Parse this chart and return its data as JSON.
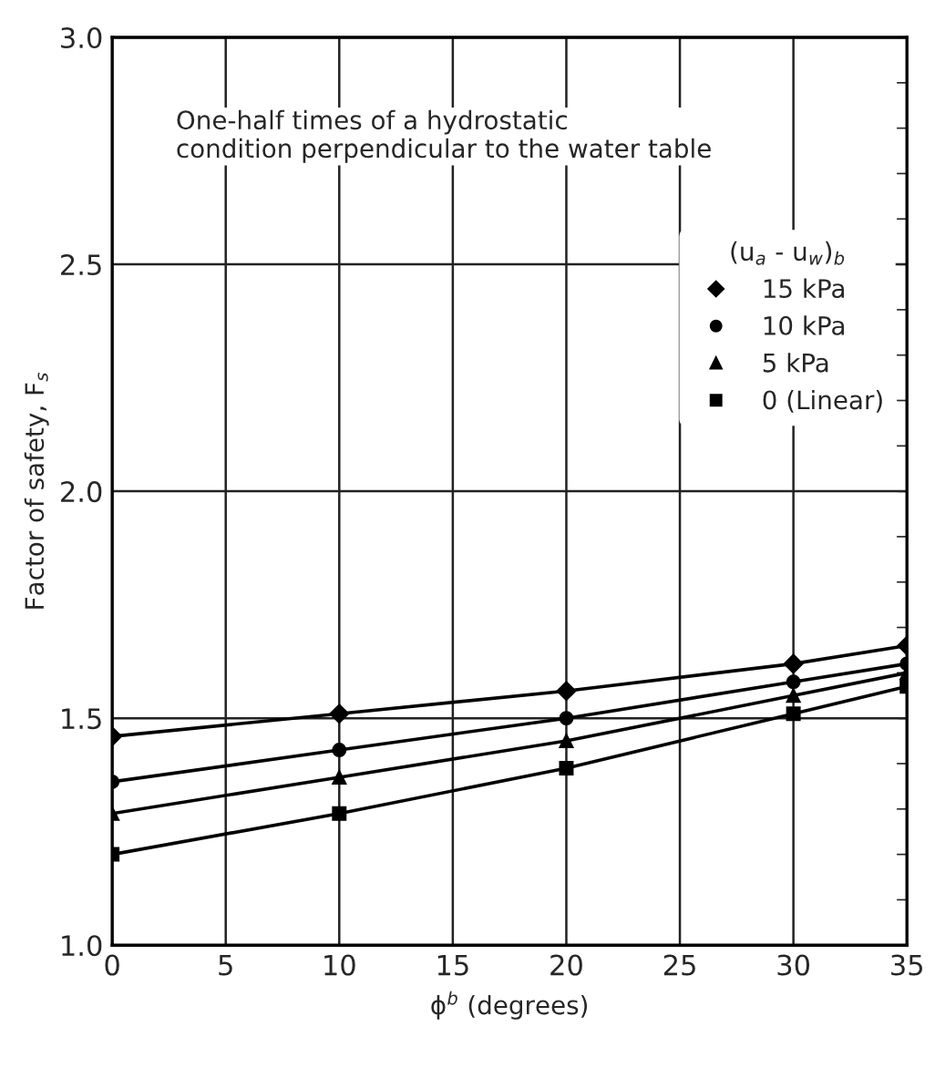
{
  "chart_data": {
    "type": "line",
    "xlabel": "ϕ$^{b}$ (degrees)",
    "ylabel": "Factor of safety, F$_{s}$",
    "legend_title": "(u$_{a}$ - u$_{w}$)$_{b}$",
    "annotations": [
      "One-half times of a hydrostatic\ncondition perpendicular to the water table"
    ],
    "x": [
      0,
      10,
      20,
      30,
      35
    ],
    "series": [
      {
        "name": "15 kPa",
        "color": "#000000",
        "marker": "diamond",
        "values": [
          1.46,
          1.51,
          1.56,
          1.62,
          1.66
        ]
      },
      {
        "name": "10 kPa",
        "color": "#000000",
        "marker": "circle",
        "values": [
          1.36,
          1.43,
          1.5,
          1.58,
          1.62
        ]
      },
      {
        "name": "5 kPa",
        "color": "#000000",
        "marker": "triangle",
        "values": [
          1.29,
          1.37,
          1.45,
          1.55,
          1.6
        ]
      },
      {
        "name": "0 (Linear)",
        "color": "#000000",
        "marker": "square",
        "values": [
          1.2,
          1.29,
          1.39,
          1.51,
          1.57
        ]
      }
    ],
    "xlim": [
      0,
      35
    ],
    "ylim": [
      1.0,
      3.0
    ],
    "xticks": [
      0,
      5,
      10,
      15,
      20,
      25,
      30,
      35
    ],
    "yticks": [
      {
        "value": 1,
        "label": "1.0"
      },
      1.5,
      {
        "value": 2,
        "label": "2.0"
      },
      2.5,
      {
        "value": 3,
        "label": "3.0"
      }
    ],
    "grid": true,
    "legend": "right",
    "line_style": "solid"
  }
}
